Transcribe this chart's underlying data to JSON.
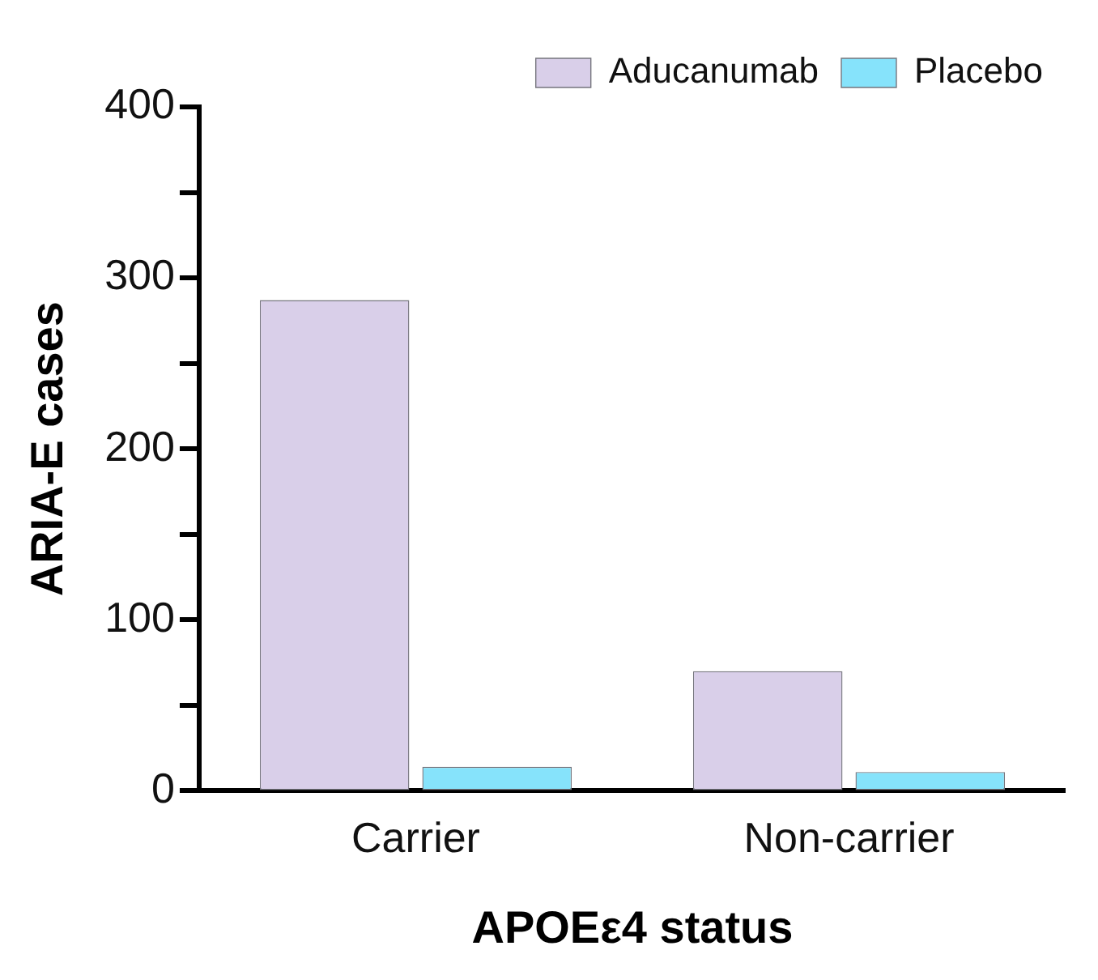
{
  "chart_data": {
    "type": "bar",
    "xlabel": "APOEε4 status",
    "ylabel": "ARIA-E cases",
    "categories": [
      "Carrier",
      "Non-carrier"
    ],
    "series": [
      {
        "name": "Aducanumab",
        "color": "#d9cfe9",
        "values": [
          287,
          70
        ]
      },
      {
        "name": "Placebo",
        "color": "#86e3fb",
        "values": [
          14,
          11
        ]
      }
    ],
    "ylim": [
      0,
      400
    ],
    "yticks": [
      0,
      {
        "value": 50,
        "label": null
      },
      100,
      {
        "value": 150,
        "label": null
      },
      200,
      {
        "value": 250,
        "label": null
      },
      300,
      {
        "value": 350,
        "label": null
      },
      400
    ],
    "grid": false,
    "legend": "top right"
  }
}
